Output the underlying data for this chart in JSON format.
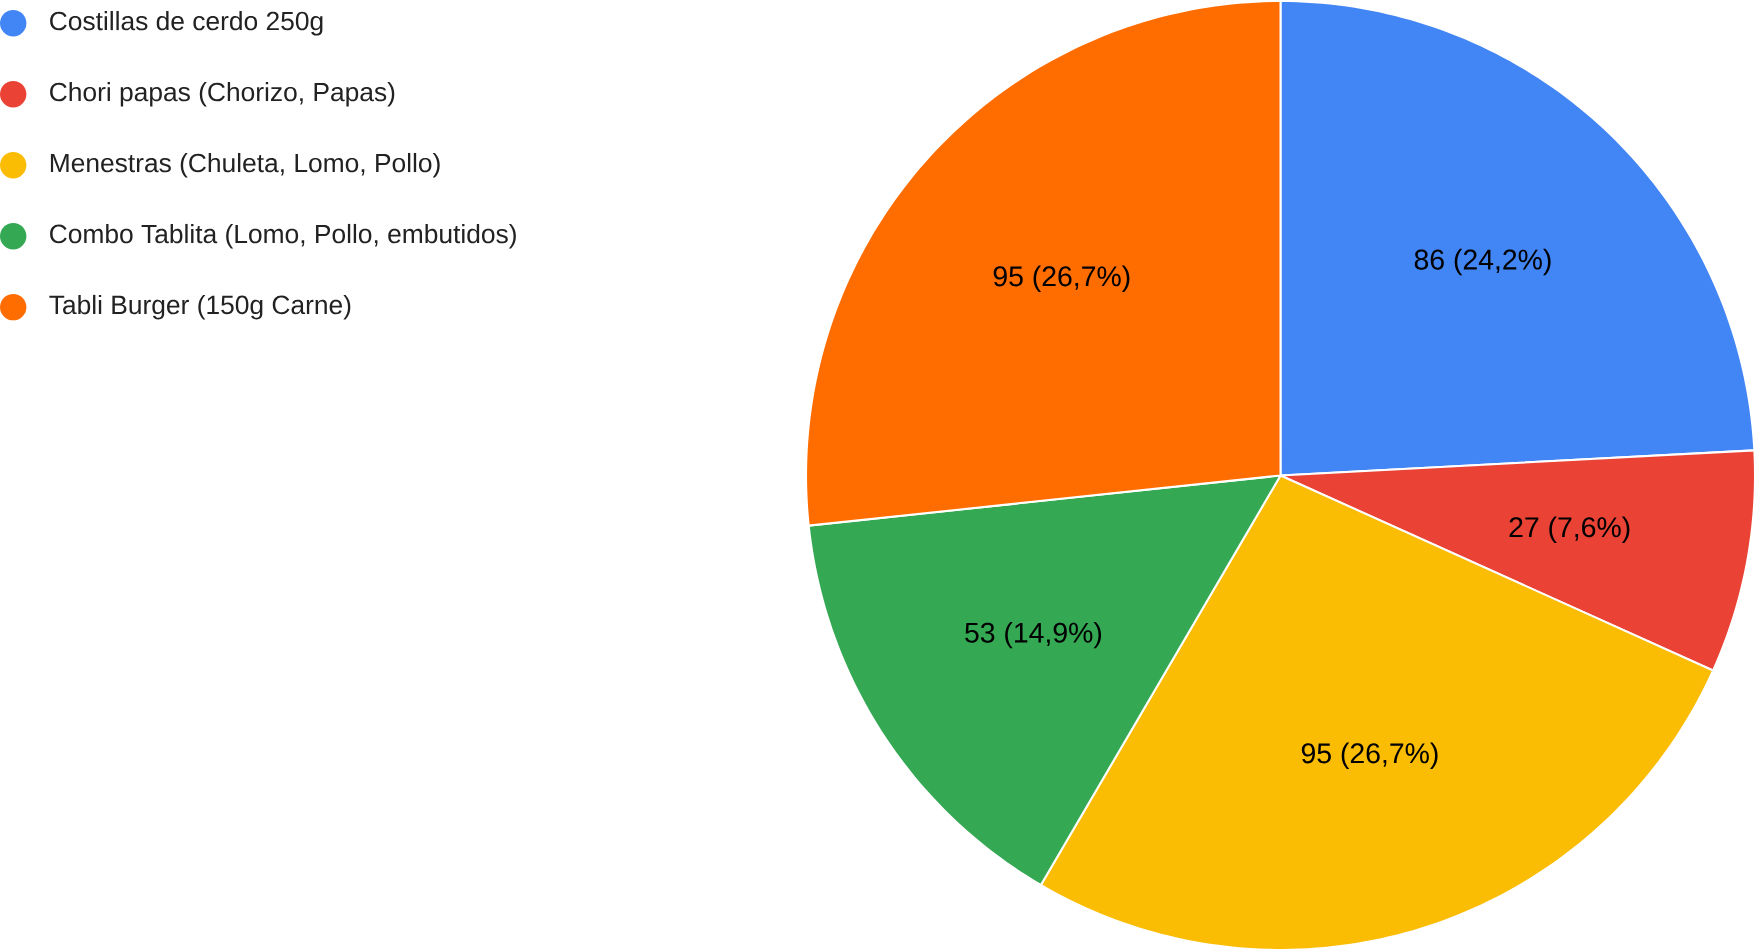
{
  "chart_data": {
    "type": "pie",
    "categories": [
      "Costillas de cerdo 250g",
      "Chori papas (Chorizo, Papas)",
      "Menestras (Chuleta, Lomo, Pollo)",
      "Combo Tablita (Lomo, Pollo, embutidos)",
      "Tabli Burger (150g Carne)"
    ],
    "values": [
      86,
      27,
      95,
      53,
      95
    ],
    "value_labels": [
      "86 (24,2%)",
      "27 (7,6%)",
      "95 (26,7%)",
      "53 (14,9%)",
      "95 (26,7%)"
    ],
    "colors": [
      "#4285f4",
      "#ea4335",
      "#fbbc04",
      "#34a853",
      "#ff6d01"
    ],
    "legend": "top left"
  }
}
